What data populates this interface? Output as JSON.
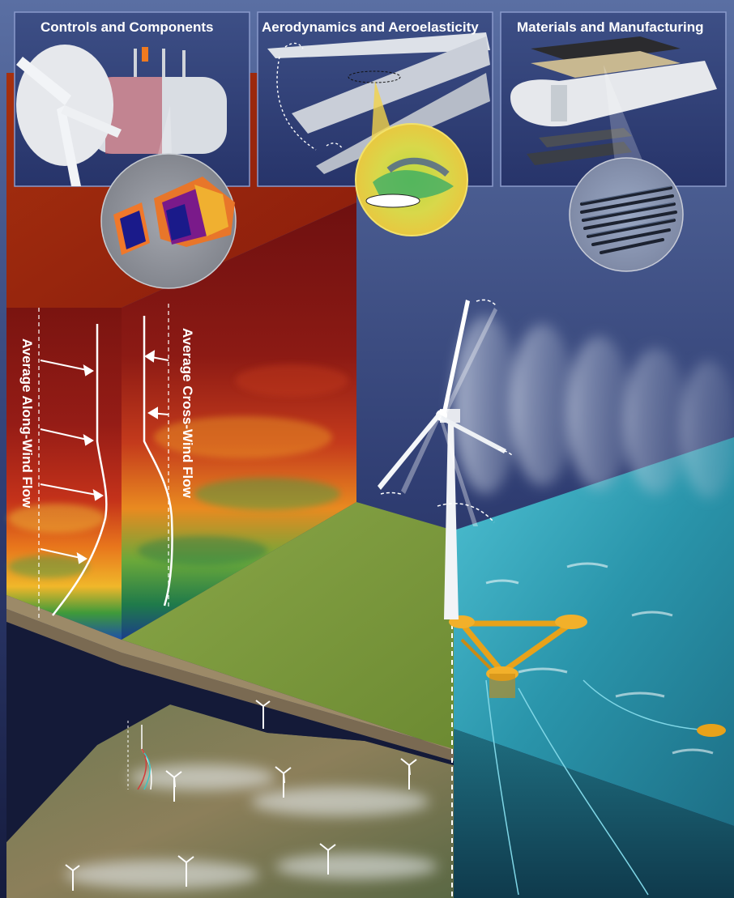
{
  "panels": {
    "controls": {
      "title": "Controls and Components"
    },
    "aero": {
      "title": "Aerodynamics and Aeroelasticity"
    },
    "materials": {
      "title": "Materials and Manufacturing"
    }
  },
  "profiles": {
    "along_wind": "Average Along-Wind Flow",
    "cross_wind": "Average Cross-Wind Flow"
  },
  "colors": {
    "sky_top": "#4a5e90",
    "sky_bottom": "#1c2550",
    "flow_red": "#8e1a10",
    "flow_orange": "#e27a1a",
    "flow_green": "#2e8a3a",
    "grass": "#7d9a3e",
    "ocean": "#2b93a8",
    "platform": "#e8a21a"
  }
}
